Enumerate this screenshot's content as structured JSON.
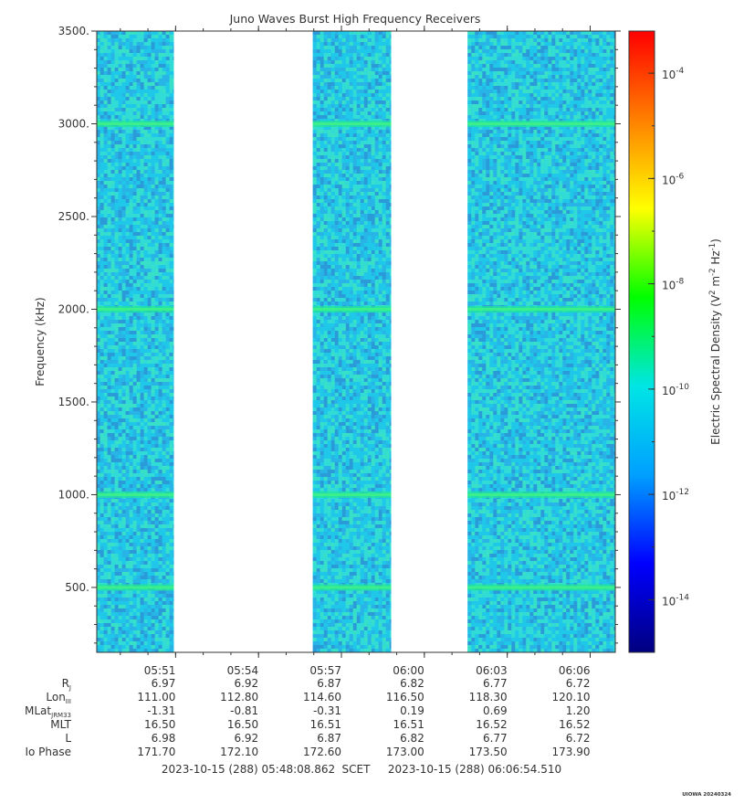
{
  "chart_data": {
    "type": "heatmap",
    "title": "Juno Waves Burst High Frequency Receivers",
    "ylabel": "Frequency (kHz)",
    "colorbar_label_parts": [
      "Electric Spectral Density (V",
      "2",
      " m",
      "-2",
      " Hz",
      "-1",
      ")"
    ],
    "ylim": [
      150,
      3500
    ],
    "y_ticks": [
      {
        "value": 500,
        "label": "500."
      },
      {
        "value": 1000,
        "label": "1000."
      },
      {
        "value": 1500,
        "label": "1500."
      },
      {
        "value": 2000,
        "label": "2000."
      },
      {
        "value": 2500,
        "label": "2500."
      },
      {
        "value": 3000,
        "label": "3000."
      },
      {
        "value": 3500,
        "label": "3500."
      }
    ],
    "x_start": "05:48:08.862",
    "x_end": "06:06:54.510",
    "x_ticks": [
      "05:51",
      "05:54",
      "05:57",
      "06:00",
      "06:03",
      "06:06"
    ],
    "data_intervals": [
      {
        "start": "05:48:08",
        "end": "05:50:56"
      },
      {
        "start": "05:55:58",
        "end": "05:58:48"
      },
      {
        "start": "06:01:34",
        "end": "06:06:54"
      }
    ],
    "emission_bands_khz": [
      3000,
      2000,
      1000,
      500
    ],
    "colorbar": {
      "scale": "log",
      "min_exp": -15,
      "max_exp": -3.2,
      "tick_exponents": [
        -14,
        -12,
        -10,
        -8,
        -6,
        -4
      ],
      "colors": [
        "#000080",
        "#0000ff",
        "#00a0ff",
        "#00e5e5",
        "#00ff00",
        "#ffff00",
        "#ff8000",
        "#ff0000"
      ]
    },
    "grid": false,
    "background_value_colors": [
      "#1fc8e8",
      "#32dcd6",
      "#28b4e6",
      "#38e0c8",
      "#2a9ad8"
    ],
    "band_colors": [
      "#20e69a",
      "#3ff08a"
    ]
  },
  "ephemeris": {
    "labels": [
      "R_J",
      "Lon_III",
      "MLat_JRM33",
      "MLT",
      "L",
      "Io Phase"
    ],
    "rows": [
      [
        "6.97",
        "6.92",
        "6.87",
        "6.82",
        "6.77",
        "6.72"
      ],
      [
        "111.00",
        "112.80",
        "114.60",
        "116.50",
        "118.30",
        "120.10"
      ],
      [
        "-1.31",
        "-0.81",
        "-0.31",
        "0.19",
        "0.69",
        "1.20"
      ],
      [
        "16.50",
        "16.50",
        "16.51",
        "16.51",
        "16.52",
        "16.52"
      ],
      [
        "6.98",
        "6.92",
        "6.87",
        "6.82",
        "6.77",
        "6.72"
      ],
      [
        "171.70",
        "172.10",
        "172.60",
        "173.00",
        "173.50",
        "173.90"
      ]
    ]
  },
  "footer": {
    "start_label": "2023-10-15 (288) 05:48:08.862",
    "scet_label": "SCET",
    "end_label": "2023-10-15 (288) 06:06:54.510"
  },
  "watermark": "UIOWA 20240324"
}
